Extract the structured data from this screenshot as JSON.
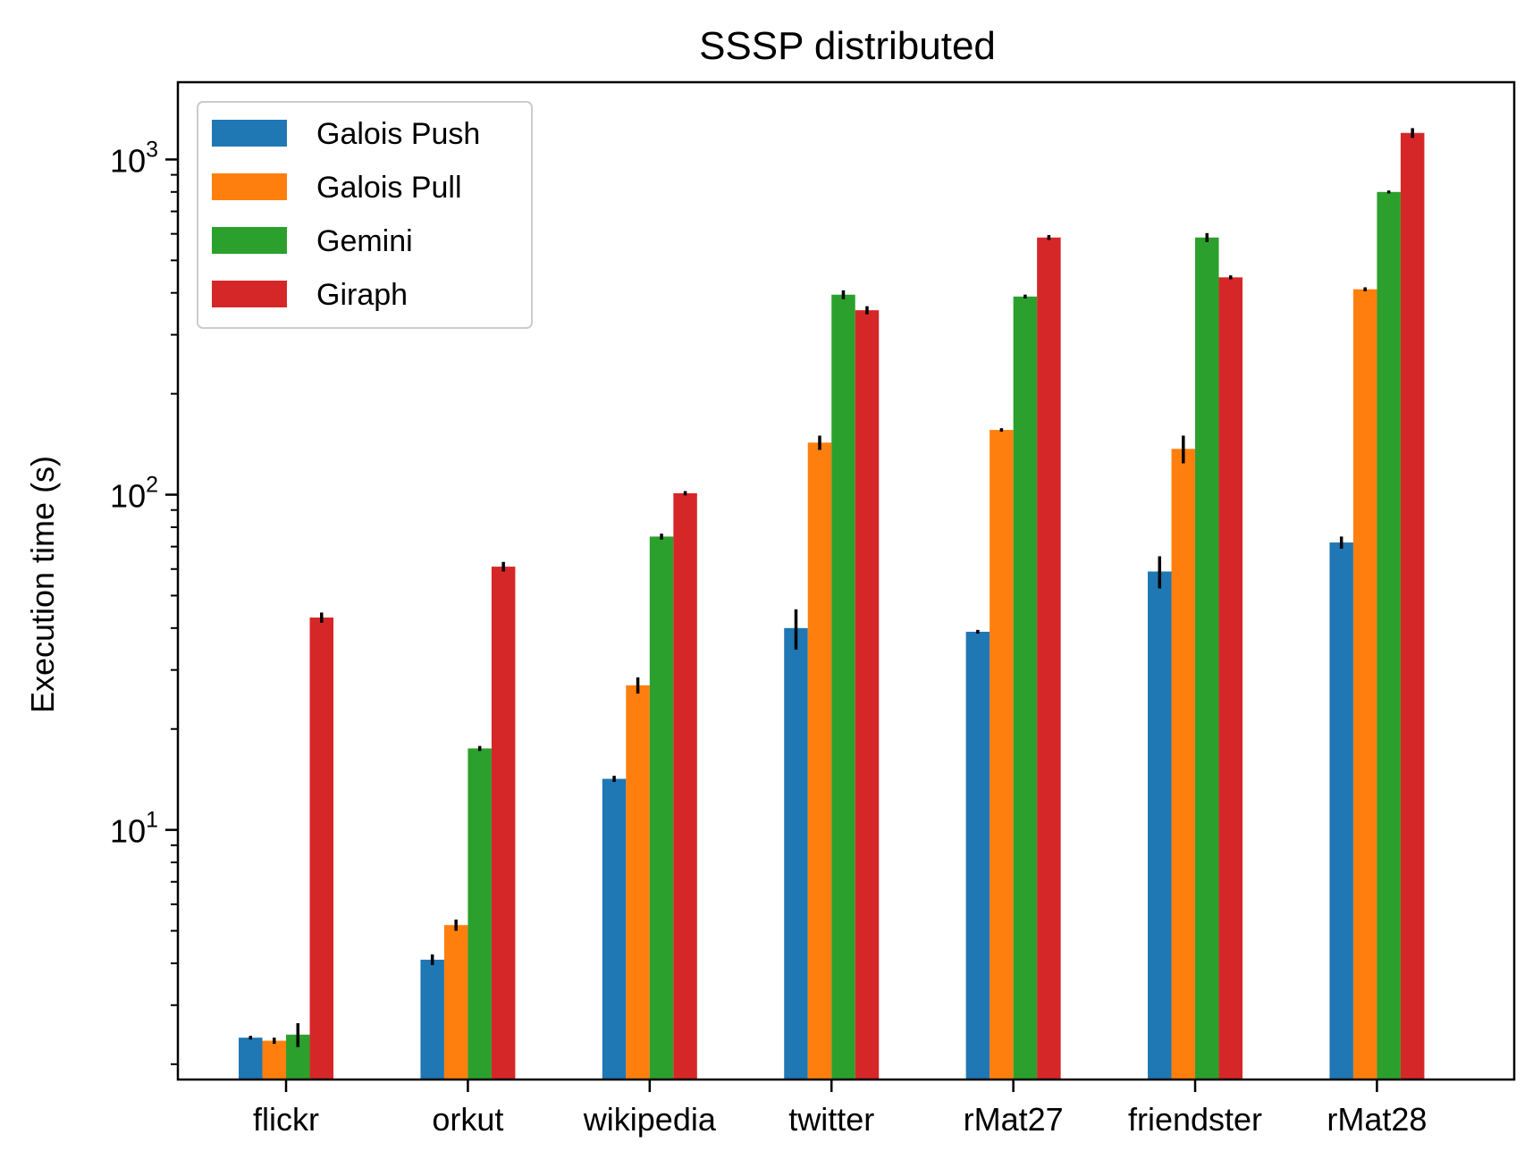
{
  "chart_data": {
    "type": "bar",
    "title": "SSSP distributed",
    "xlabel": "",
    "ylabel": "Execution time (s)",
    "yscale": "log",
    "ylim": [
      1.8,
      1700
    ],
    "grid": false,
    "legend": {
      "placement": "top-left"
    },
    "categories": [
      "flickr",
      "orkut",
      "wikipedia",
      "twitter",
      "rMat27",
      "friendster",
      "rMat28"
    ],
    "series": [
      {
        "name": "Galois Push",
        "color": "#1f77b4",
        "values": [
          2.4,
          4.1,
          14.2,
          40,
          39,
          59,
          72
        ],
        "errors": [
          0.03,
          0.15,
          0.3,
          5.5,
          0.5,
          6.5,
          3
        ]
      },
      {
        "name": "Galois Pull",
        "color": "#ff7f0e",
        "values": [
          2.35,
          5.2,
          27,
          143,
          156,
          137,
          410
        ],
        "errors": [
          0.05,
          0.2,
          1.5,
          7,
          1,
          13,
          2
        ]
      },
      {
        "name": "Gemini",
        "color": "#2ca02c",
        "values": [
          2.45,
          17.5,
          75,
          395,
          390,
          585,
          800
        ],
        "errors": [
          0.2,
          0.3,
          1.5,
          12,
          2,
          18,
          8
        ]
      },
      {
        "name": "Giraph",
        "color": "#d62728",
        "values": [
          43,
          61,
          101,
          355,
          585,
          445,
          1200
        ],
        "errors": [
          1.5,
          2,
          1.5,
          10,
          10,
          6,
          40
        ]
      }
    ],
    "yticks": [
      {
        "value": 10,
        "base": "10",
        "exp": "1"
      },
      {
        "value": 100,
        "base": "10",
        "exp": "2"
      },
      {
        "value": 1000,
        "base": "10",
        "exp": "3"
      }
    ]
  }
}
